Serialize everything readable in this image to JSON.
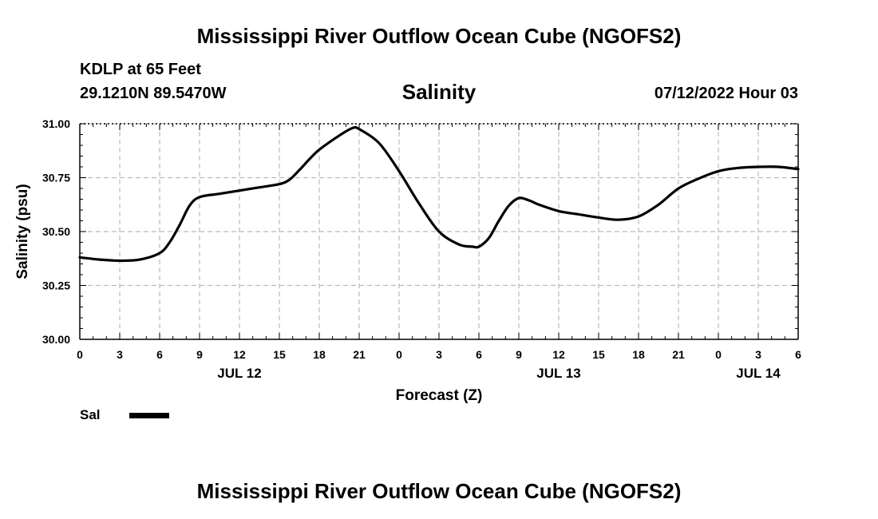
{
  "header": {
    "title": "Mississippi River Outflow Ocean Cube (NGOFS2)",
    "station": "KDLP at 65 Feet",
    "coords": "29.1210N  89.5470W",
    "datetime": "07/12/2022 Hour 03"
  },
  "footer": {
    "title": "Mississippi River Outflow Ocean Cube (NGOFS2)"
  },
  "legend": {
    "label": "Sal"
  },
  "colors": {
    "line": "#000000",
    "grid": "#bbbbbb",
    "background": "#ffffff"
  },
  "chart_data": {
    "type": "line",
    "title": "Salinity",
    "xlabel": "Forecast (Z)",
    "ylabel": "Salinity (psu)",
    "ylim": [
      30.0,
      31.0
    ],
    "xlim": [
      0,
      54
    ],
    "yticks": [
      30.0,
      30.25,
      30.5,
      30.75,
      31.0
    ],
    "ytick_labels": [
      "30.00",
      "30.25",
      "30.50",
      "30.75",
      "31.00"
    ],
    "xticks": [
      0,
      3,
      6,
      9,
      12,
      15,
      18,
      21,
      24,
      27,
      30,
      33,
      36,
      39,
      42,
      45,
      48,
      51,
      54
    ],
    "xtick_labels": [
      "0",
      "3",
      "6",
      "9",
      "12",
      "15",
      "18",
      "21",
      "0",
      "3",
      "6",
      "9",
      "12",
      "15",
      "18",
      "21",
      "0",
      "3",
      "6"
    ],
    "day_labels": [
      {
        "x": 12,
        "label": "JUL 12"
      },
      {
        "x": 36,
        "label": "JUL 13"
      },
      {
        "x": 51,
        "label": "JUL 14"
      }
    ],
    "grid": true,
    "series": [
      {
        "name": "Sal",
        "x": [
          0,
          1.5,
          3,
          4.5,
          6,
          6.75,
          7.5,
          8.25,
          9,
          10.5,
          12,
          13.5,
          15,
          15.75,
          16.5,
          17.25,
          18,
          19.5,
          20.5,
          21,
          22.5,
          24,
          25.5,
          27,
          28.5,
          29.5,
          30,
          30.75,
          31.5,
          32.25,
          33,
          33.75,
          34.5,
          36,
          37.5,
          39,
          40.5,
          42,
          43.5,
          45,
          46.5,
          48,
          49.5,
          51,
          52.5,
          54
        ],
        "values": [
          30.38,
          30.37,
          30.365,
          30.37,
          30.4,
          30.45,
          30.53,
          30.62,
          30.66,
          30.675,
          30.69,
          30.705,
          30.72,
          30.74,
          30.785,
          30.835,
          30.88,
          30.945,
          30.98,
          30.975,
          30.91,
          30.78,
          30.63,
          30.5,
          30.44,
          30.43,
          30.43,
          30.47,
          30.55,
          30.62,
          30.655,
          30.645,
          30.625,
          30.595,
          30.58,
          30.565,
          30.555,
          30.57,
          30.625,
          30.7,
          30.745,
          30.78,
          30.795,
          30.8,
          30.8,
          30.79
        ]
      }
    ]
  }
}
